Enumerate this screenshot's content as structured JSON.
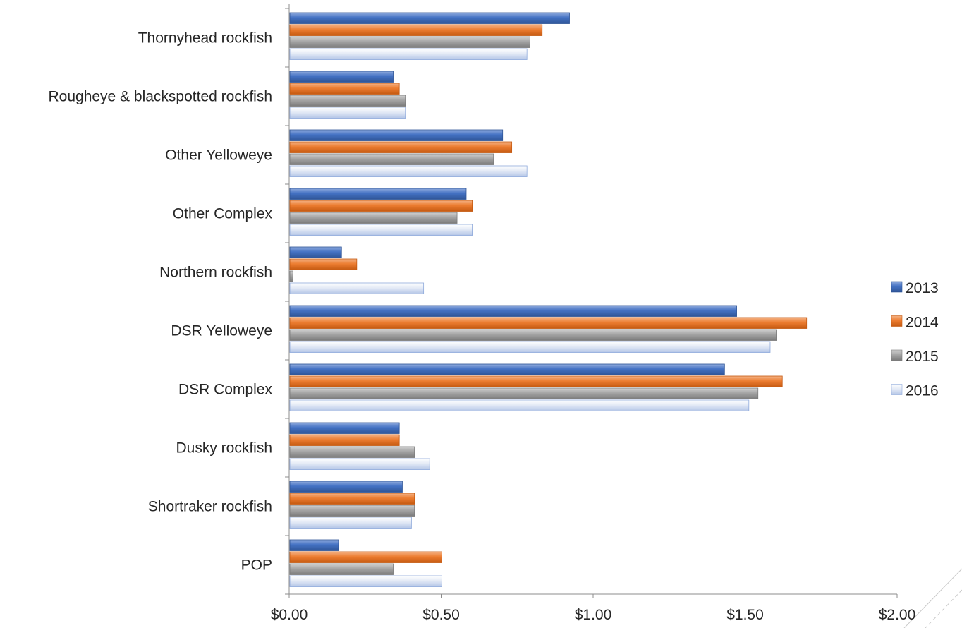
{
  "chart_data": {
    "type": "bar",
    "orientation": "horizontal",
    "title": "",
    "xlabel": "",
    "ylabel": "",
    "categories": [
      "Thornyhead rockfish",
      "Rougheye & blackspotted rockfish",
      "Other Yelloweye",
      "Other Complex",
      "Northern rockfish",
      "DSR Yelloweye",
      "DSR Complex",
      "Dusky rockfish",
      "Shortraker rockfish",
      "POP"
    ],
    "series": [
      {
        "name": "2013",
        "color": "#4472C4",
        "values": [
          0.92,
          0.34,
          0.7,
          0.58,
          0.17,
          1.47,
          1.43,
          0.36,
          0.37,
          0.16
        ]
      },
      {
        "name": "2014",
        "color": "#ED7D31",
        "values": [
          0.83,
          0.36,
          0.73,
          0.6,
          0.22,
          1.7,
          1.62,
          0.36,
          0.41,
          0.5
        ]
      },
      {
        "name": "2015",
        "color": "#A5A5A5",
        "values": [
          0.79,
          0.38,
          0.67,
          0.55,
          0.01,
          1.6,
          1.54,
          0.41,
          0.41,
          0.34
        ]
      },
      {
        "name": "2016",
        "color": "#D9E2F3",
        "values": [
          0.78,
          0.38,
          0.78,
          0.6,
          0.44,
          1.58,
          1.51,
          0.46,
          0.4,
          0.5
        ]
      }
    ],
    "xlim": [
      0,
      2.0
    ],
    "xticks": [
      0,
      0.5,
      1.0,
      1.5,
      2.0
    ],
    "xtick_labels": [
      "$0.00",
      "$0.50",
      "$1.00",
      "$1.50",
      "$2.00"
    ],
    "grid": false,
    "legend_position": "right"
  }
}
